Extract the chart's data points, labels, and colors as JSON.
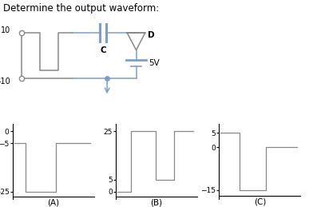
{
  "title": "Determine the output waveform:",
  "title_fontsize": 8.5,
  "title_color": "#000000",
  "background_color": "#ffffff",
  "circuit_color": "#7B9FCC",
  "circuit_gray": "#888888",
  "waveform_color": "#888888",
  "circuit": {
    "input_high_label": "10",
    "input_low_label": "-10",
    "capacitor_label": "C",
    "diode_label": "D",
    "voltage_label": "5V"
  },
  "waveform_A": {
    "label": "(A)",
    "yticks": [
      -25,
      -5,
      0
    ],
    "ylim": [
      -28,
      3
    ],
    "segments_x": [
      0.0,
      0.15,
      0.15,
      0.55,
      0.55,
      1.0
    ],
    "segments_y": [
      -5,
      -5,
      -25,
      -25,
      -5,
      -5
    ]
  },
  "waveform_B": {
    "label": "(B)",
    "yticks": [
      0,
      5,
      25
    ],
    "ylim": [
      -3,
      28
    ],
    "segments_x": [
      0.0,
      0.18,
      0.18,
      0.5,
      0.5,
      0.75,
      0.75,
      1.0
    ],
    "segments_y": [
      0,
      0,
      25,
      25,
      5,
      5,
      25,
      25
    ]
  },
  "waveform_C": {
    "label": "(C)",
    "yticks": [
      -15,
      0,
      5
    ],
    "ylim": [
      -18,
      8
    ],
    "segments_x": [
      0.0,
      0.25,
      0.25,
      0.6,
      0.6,
      1.0
    ],
    "segments_y": [
      5,
      5,
      -15,
      -15,
      0,
      0
    ]
  }
}
